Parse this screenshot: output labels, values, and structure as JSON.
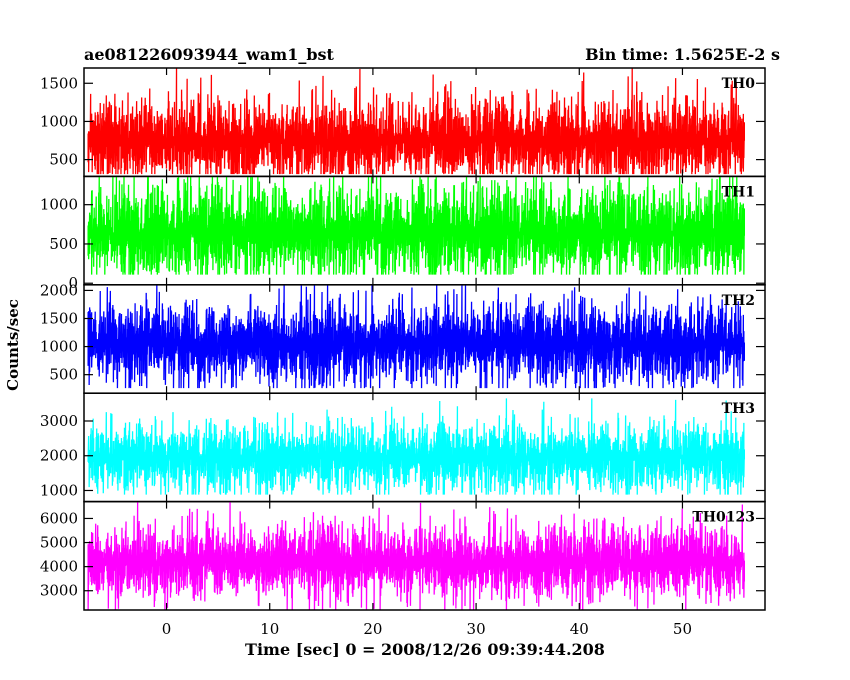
{
  "chart_data": {
    "type": "line",
    "title_left": "ae081226093944_wam1_bst",
    "title_right": "Bin time: 1.5625E-2 s",
    "xlabel": "Time [sec] 0 = 2008/12/26 09:39:44.208",
    "ylabel": "Counts/sec",
    "xlim": [
      -8,
      58
    ],
    "x_ticks": [
      0,
      10,
      20,
      30,
      40,
      50
    ],
    "x_data_range": [
      -7.6,
      56.0
    ],
    "grid": false,
    "panels": [
      {
        "name": "TH0",
        "color": "#ff0000",
        "ylim": [
          280,
          1700
        ],
        "y_ticks": [
          500,
          1000,
          1500
        ],
        "mean": 750,
        "spread": 220,
        "floor": 310,
        "cap": 1700
      },
      {
        "name": "TH1",
        "color": "#00ff00",
        "ylim": [
          -20,
          1360
        ],
        "y_ticks": [
          0,
          500,
          1000
        ],
        "mean": 640,
        "spread": 240,
        "floor": 110,
        "cap": 1360
      },
      {
        "name": "TH2",
        "color": "#0000ff",
        "ylim": [
          170,
          2100
        ],
        "y_ticks": [
          500,
          1000,
          1500,
          2000
        ],
        "mean": 1050,
        "spread": 290,
        "floor": 260,
        "cap": 2100
      },
      {
        "name": "TH3",
        "color": "#00ffff",
        "ylim": [
          680,
          3800
        ],
        "y_ticks": [
          1000,
          2000,
          3000
        ],
        "mean": 1950,
        "spread": 400,
        "floor": 880,
        "cap": 3650
      },
      {
        "name": "TH0123",
        "color": "#ff00ff",
        "ylim": [
          2200,
          6700
        ],
        "y_ticks": [
          3000,
          4000,
          5000,
          6000
        ],
        "mean": 4200,
        "spread": 600,
        "floor": 2200,
        "cap": 6700
      }
    ]
  }
}
